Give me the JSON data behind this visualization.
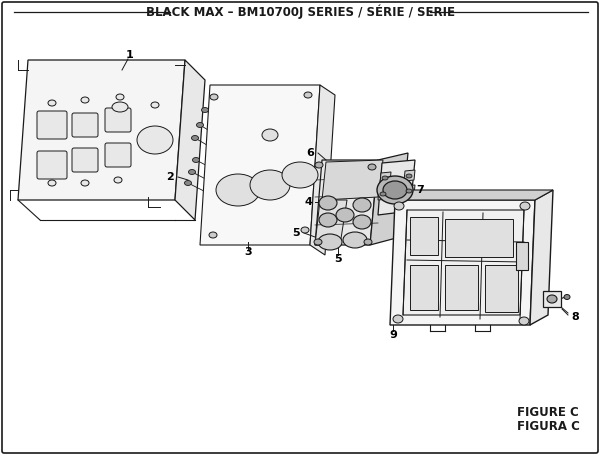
{
  "title": "BLACK MAX – BM10700J SERIES / SÉRIE / SERIE",
  "figure_label": "FIGURE C",
  "figura_label": "FIGURA C",
  "bg_color": "#ffffff",
  "line_color": "#1a1a1a",
  "light_fill": "#f5f5f5",
  "mid_fill": "#e8e8e8",
  "dark_fill": "#d0d0d0",
  "title_fontsize": 8.5,
  "label_fontsize": 8,
  "figure_fontsize": 8.5
}
